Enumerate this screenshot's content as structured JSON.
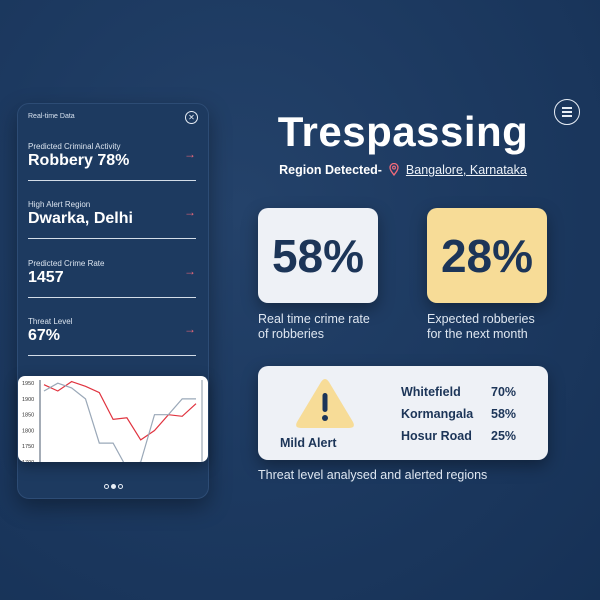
{
  "phone": {
    "title": "Real-time Data",
    "close_icon": "close-icon",
    "stats": [
      {
        "label": "Predicted Criminal Activity",
        "value": "Robbery 78%"
      },
      {
        "label": "High Alert Region",
        "value": "Dwarka, Delhi"
      },
      {
        "label": "Predicted Crime Rate",
        "value": "1457"
      },
      {
        "label": "Threat Level",
        "value": "67%"
      }
    ],
    "arrow": "→",
    "pagination": {
      "total": 3,
      "active": 2
    }
  },
  "chart_data": {
    "type": "line",
    "yticks": [
      "1950",
      "1900",
      "1850",
      "1800",
      "1750",
      "1700"
    ],
    "ylim": [
      1700,
      1960
    ],
    "series": [
      {
        "color": "#e0333f",
        "values": [
          1945,
          1925,
          1955,
          1940,
          1920,
          1835,
          1840,
          1770,
          1800,
          1850,
          1845,
          1885
        ]
      },
      {
        "color": "#9aa8b8",
        "values": [
          1925,
          1950,
          1935,
          1900,
          1760,
          1760,
          1680,
          1700,
          1850,
          1850,
          1900,
          1900
        ]
      }
    ]
  },
  "title": "Trespassing",
  "region": {
    "label": "Region Detected-",
    "place": "Bangalore, Karnataka",
    "icon": "location-pin-icon"
  },
  "cards": [
    {
      "value": "58%",
      "caption_line1": "Real time crime rate",
      "caption_line2": "of robberies"
    },
    {
      "value": "28%",
      "caption_line1": "Expected robberies",
      "caption_line2": "for the next month"
    }
  ],
  "alert": {
    "label": "Mild Alert",
    "icon": "warning-icon",
    "rows": [
      {
        "region": "Whitefield",
        "pct": "70%"
      },
      {
        "region": "Kormangala",
        "pct": "58%"
      },
      {
        "region": "Hosur Road",
        "pct": "25%"
      }
    ]
  },
  "footer_caption": "Threat level analysed and alerted regions",
  "colors": {
    "background": "#1d3a61",
    "accent_red": "#f06a7a",
    "card_yellow": "#f7dc97",
    "card_light": "#eef1f6",
    "text_dark": "#1c3558"
  }
}
